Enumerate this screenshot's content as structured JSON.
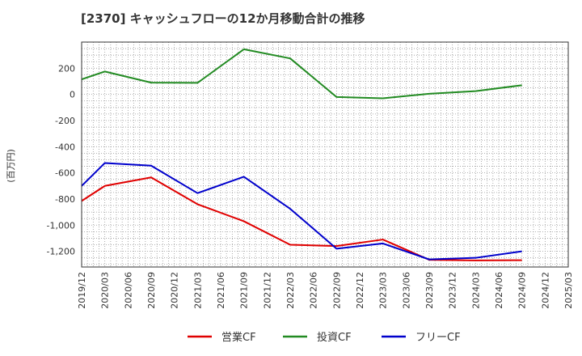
{
  "chart_data": {
    "type": "line",
    "title": "[2370]  キャッシュフローの12か月移動合計の推移",
    "ylabel": "(百万円)",
    "xlabel": "",
    "ylim": [
      -1320,
      400
    ],
    "yticks": [
      200,
      0,
      -200,
      -400,
      -600,
      -800,
      -1000,
      -1200
    ],
    "ytick_labels": [
      "200",
      "0",
      "-200",
      "-400",
      "-600",
      "-800",
      "-1,000",
      "-1,200"
    ],
    "categories": [
      "2019/12",
      "2020/03",
      "2020/06",
      "2020/09",
      "2020/12",
      "2021/03",
      "2021/06",
      "2021/09",
      "2021/12",
      "2022/03",
      "2022/06",
      "2022/09",
      "2022/12",
      "2023/03",
      "2023/06",
      "2023/09",
      "2023/12",
      "2024/03",
      "2024/06",
      "2024/09",
      "2024/12",
      "2025/03"
    ],
    "grid": true,
    "legend_position": "bottom",
    "series": [
      {
        "name": "営業CF",
        "color": "#e00000",
        "values": [
          -815,
          -700,
          null,
          -635,
          null,
          -840,
          null,
          -970,
          null,
          -1150,
          null,
          -1160,
          null,
          -1110,
          null,
          -1265,
          null,
          -1270,
          null,
          -1268,
          null,
          null
        ]
      },
      {
        "name": "投資CF",
        "color": "#228b22",
        "values": [
          115,
          175,
          null,
          90,
          null,
          88,
          null,
          345,
          null,
          275,
          null,
          -20,
          null,
          -30,
          null,
          5,
          null,
          25,
          null,
          70,
          null,
          null
        ]
      },
      {
        "name": "フリーCF",
        "color": "#0000cc",
        "values": [
          -700,
          -525,
          null,
          -545,
          null,
          -755,
          null,
          -630,
          null,
          -875,
          null,
          -1180,
          null,
          -1140,
          null,
          -1262,
          null,
          -1250,
          null,
          -1200,
          null,
          null
        ]
      }
    ]
  }
}
